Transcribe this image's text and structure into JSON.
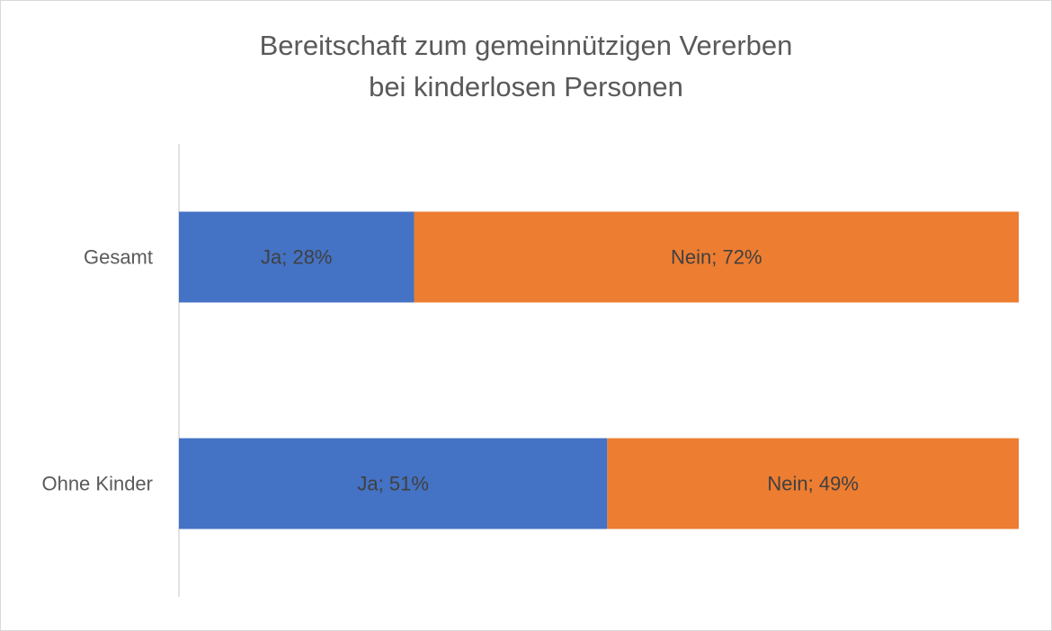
{
  "chart_data": {
    "type": "bar",
    "orientation": "horizontal",
    "stacked": true,
    "percent_stacked": true,
    "title_lines": [
      "Bereitschaft zum gemeinnützigen Vererben",
      "bei kinderlosen Personen"
    ],
    "categories": [
      "Gesamt",
      "Ohne Kinder"
    ],
    "series": [
      {
        "name": "Ja",
        "color": "#4472c4",
        "values": [
          28,
          51
        ],
        "labels": [
          "Ja; 28%",
          "Ja; 51%"
        ]
      },
      {
        "name": "Nein",
        "color": "#ed7d31",
        "values": [
          72,
          49
        ],
        "labels": [
          "Nein; 72%",
          "Nein; 49%"
        ]
      }
    ],
    "xlim": [
      0,
      100
    ],
    "grid": false,
    "legend": "none"
  }
}
